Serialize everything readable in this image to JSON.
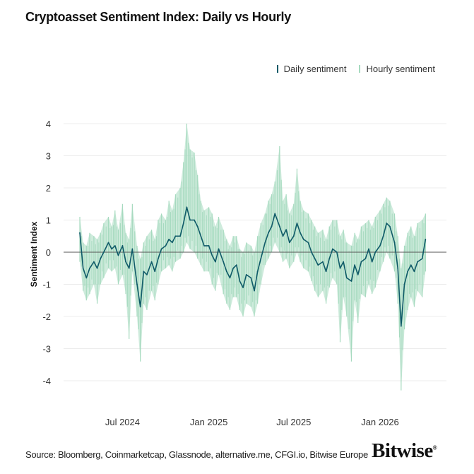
{
  "title": "Cryptoasset Sentiment Index: Daily vs Hourly",
  "source": "Source: Bloomberg, Coinmarketcap, Glassnode, alternative.me, CFGI.io, Bitwise Europe",
  "logo_text": "Bitwise",
  "chart_data": {
    "type": "line",
    "title": "Cryptoasset Sentiment Index: Daily vs Hourly",
    "xlabel": "",
    "ylabel": "Sentiment Index",
    "xlim": [
      "2024-04-01",
      "2026-04-15"
    ],
    "ylim": [
      -4.5,
      4.2
    ],
    "yticks": [
      4,
      3,
      2,
      1,
      0,
      -1,
      -2,
      -3,
      -4
    ],
    "xticks": [
      {
        "date": "2024-07-01",
        "label": "Jul 2024"
      },
      {
        "date": "2025-01-01",
        "label": "Jan 2025"
      },
      {
        "date": "2025-07-01",
        "label": "Jul 2025"
      },
      {
        "date": "2026-01-01",
        "label": "Jan 2026"
      }
    ],
    "grid": true,
    "zero_line": true,
    "legend_placement": "top-right",
    "series": [
      {
        "name": "Daily sentiment",
        "color": "#0f5a68"
      },
      {
        "name": "Hourly sentiment",
        "color": "#a6dabf"
      }
    ],
    "points_format": [
      "date",
      "daily",
      "hourly_min",
      "hourly_max"
    ],
    "points": [
      [
        "2024-04-01",
        0.6,
        -0.3,
        1.1
      ],
      [
        "2024-04-08",
        -0.5,
        -1.2,
        0.3
      ],
      [
        "2024-04-15",
        -0.8,
        -1.5,
        0.2
      ],
      [
        "2024-04-22",
        -0.5,
        -1.3,
        0.6
      ],
      [
        "2024-05-01",
        -0.3,
        -1.0,
        0.5
      ],
      [
        "2024-05-08",
        -0.5,
        -1.6,
        0.4
      ],
      [
        "2024-05-15",
        -0.2,
        -1.0,
        0.6
      ],
      [
        "2024-05-22",
        0.0,
        -0.8,
        0.9
      ],
      [
        "2024-06-01",
        0.3,
        -0.5,
        1.1
      ],
      [
        "2024-06-08",
        0.1,
        -0.6,
        0.8
      ],
      [
        "2024-06-15",
        0.2,
        -0.5,
        1.3
      ],
      [
        "2024-06-22",
        -0.1,
        -1.0,
        0.7
      ],
      [
        "2024-07-01",
        0.2,
        -0.7,
        1.5
      ],
      [
        "2024-07-08",
        -0.3,
        -1.3,
        0.6
      ],
      [
        "2024-07-15",
        -0.5,
        -2.7,
        0.4
      ],
      [
        "2024-07-22",
        0.1,
        -0.6,
        1.5
      ],
      [
        "2024-08-01",
        -1.0,
        -2.0,
        0.2
      ],
      [
        "2024-08-08",
        -1.7,
        -3.4,
        -0.2
      ],
      [
        "2024-08-15",
        -0.6,
        -1.6,
        0.3
      ],
      [
        "2024-08-22",
        -0.7,
        -1.8,
        0.5
      ],
      [
        "2024-09-01",
        -0.3,
        -1.2,
        0.7
      ],
      [
        "2024-09-08",
        -0.6,
        -1.5,
        0.4
      ],
      [
        "2024-09-15",
        -0.2,
        -1.0,
        1.0
      ],
      [
        "2024-09-22",
        0.1,
        -0.6,
        1.2
      ],
      [
        "2024-10-01",
        0.2,
        -0.5,
        1.0
      ],
      [
        "2024-10-08",
        0.4,
        -0.4,
        1.6
      ],
      [
        "2024-10-15",
        0.3,
        -0.6,
        1.3
      ],
      [
        "2024-10-22",
        0.5,
        -0.3,
        1.8
      ],
      [
        "2024-11-01",
        0.5,
        -0.2,
        2.0
      ],
      [
        "2024-11-08",
        0.9,
        0.0,
        2.8
      ],
      [
        "2024-11-15",
        1.4,
        0.3,
        4.0
      ],
      [
        "2024-11-22",
        1.0,
        0.1,
        3.2
      ],
      [
        "2024-12-01",
        1.0,
        0.0,
        3.1
      ],
      [
        "2024-12-08",
        0.8,
        -0.2,
        2.4
      ],
      [
        "2024-12-15",
        0.5,
        -0.4,
        1.6
      ],
      [
        "2024-12-22",
        0.2,
        -0.6,
        1.3
      ],
      [
        "2025-01-01",
        0.2,
        -0.6,
        1.4
      ],
      [
        "2025-01-08",
        -0.1,
        -1.0,
        1.2
      ],
      [
        "2025-01-15",
        -0.3,
        -1.2,
        0.8
      ],
      [
        "2025-01-22",
        0.1,
        -0.7,
        1.1
      ],
      [
        "2025-02-01",
        -0.3,
        -1.3,
        0.7
      ],
      [
        "2025-02-08",
        -0.6,
        -1.6,
        0.4
      ],
      [
        "2025-02-15",
        -0.8,
        -1.8,
        0.2
      ],
      [
        "2025-02-22",
        -0.5,
        -1.4,
        0.5
      ],
      [
        "2025-03-01",
        -0.4,
        -1.4,
        0.5
      ],
      [
        "2025-03-08",
        -0.9,
        -1.8,
        0.1
      ],
      [
        "2025-03-15",
        -1.1,
        -2.0,
        0.0
      ],
      [
        "2025-03-22",
        -0.7,
        -1.6,
        0.3
      ],
      [
        "2025-04-01",
        -0.8,
        -1.7,
        0.2
      ],
      [
        "2025-04-08",
        -1.2,
        -2.0,
        0.0
      ],
      [
        "2025-04-15",
        -0.6,
        -1.6,
        0.5
      ],
      [
        "2025-04-22",
        -0.2,
        -1.0,
        0.9
      ],
      [
        "2025-05-01",
        0.3,
        -0.4,
        1.2
      ],
      [
        "2025-05-08",
        0.6,
        -0.2,
        1.6
      ],
      [
        "2025-05-15",
        0.8,
        0.0,
        1.8
      ],
      [
        "2025-05-22",
        1.2,
        0.3,
        2.2
      ],
      [
        "2025-06-01",
        0.8,
        0.0,
        3.3
      ],
      [
        "2025-06-08",
        0.5,
        -0.3,
        1.6
      ],
      [
        "2025-06-15",
        0.7,
        -0.2,
        1.8
      ],
      [
        "2025-06-22",
        0.3,
        -0.5,
        1.2
      ],
      [
        "2025-07-01",
        0.5,
        -0.3,
        1.5
      ],
      [
        "2025-07-08",
        0.9,
        0.0,
        2.6
      ],
      [
        "2025-07-15",
        0.6,
        -0.3,
        1.6
      ],
      [
        "2025-07-22",
        0.4,
        -0.5,
        1.3
      ],
      [
        "2025-08-01",
        0.3,
        -0.6,
        1.2
      ],
      [
        "2025-08-08",
        0.0,
        -0.9,
        1.0
      ],
      [
        "2025-08-15",
        -0.2,
        -1.2,
        0.8
      ],
      [
        "2025-08-22",
        -0.4,
        -1.4,
        0.6
      ],
      [
        "2025-09-01",
        -0.3,
        -1.2,
        0.7
      ],
      [
        "2025-09-08",
        -0.6,
        -1.6,
        0.4
      ],
      [
        "2025-09-15",
        -0.2,
        -1.1,
        0.8
      ],
      [
        "2025-09-22",
        0.1,
        -0.8,
        1.0
      ],
      [
        "2025-10-01",
        0.0,
        -1.0,
        1.0
      ],
      [
        "2025-10-08",
        -0.5,
        -2.8,
        0.5
      ],
      [
        "2025-10-15",
        -0.3,
        -1.4,
        0.7
      ],
      [
        "2025-10-22",
        -0.8,
        -2.0,
        0.3
      ],
      [
        "2025-11-01",
        -0.9,
        -3.4,
        0.2
      ],
      [
        "2025-11-08",
        -0.4,
        -1.5,
        0.6
      ],
      [
        "2025-11-15",
        -0.7,
        -2.2,
        0.4
      ],
      [
        "2025-11-22",
        -0.3,
        -1.3,
        0.8
      ],
      [
        "2025-12-01",
        -0.2,
        -1.4,
        0.9
      ],
      [
        "2025-12-08",
        0.1,
        -1.0,
        1.0
      ],
      [
        "2025-12-15",
        -0.3,
        -1.3,
        0.8
      ],
      [
        "2025-12-22",
        0.0,
        -1.1,
        1.1
      ],
      [
        "2026-01-01",
        0.2,
        -0.6,
        1.3
      ],
      [
        "2026-01-08",
        0.5,
        -0.3,
        1.5
      ],
      [
        "2026-01-15",
        0.9,
        0.0,
        1.7
      ],
      [
        "2026-01-22",
        0.8,
        -0.2,
        1.6
      ],
      [
        "2026-02-01",
        0.3,
        -0.6,
        1.2
      ],
      [
        "2026-02-08",
        -0.5,
        -1.6,
        0.5
      ],
      [
        "2026-02-15",
        -2.3,
        -4.3,
        -0.5
      ],
      [
        "2026-02-22",
        -1.0,
        -2.4,
        0.2
      ],
      [
        "2026-03-01",
        -0.6,
        -1.8,
        0.6
      ],
      [
        "2026-03-08",
        -0.4,
        -1.4,
        0.8
      ],
      [
        "2026-03-15",
        -0.6,
        -1.7,
        0.5
      ],
      [
        "2026-03-22",
        -0.3,
        -1.2,
        0.9
      ],
      [
        "2026-04-01",
        -0.2,
        -1.4,
        1.0
      ],
      [
        "2026-04-08",
        0.4,
        -0.6,
        1.2
      ]
    ]
  }
}
